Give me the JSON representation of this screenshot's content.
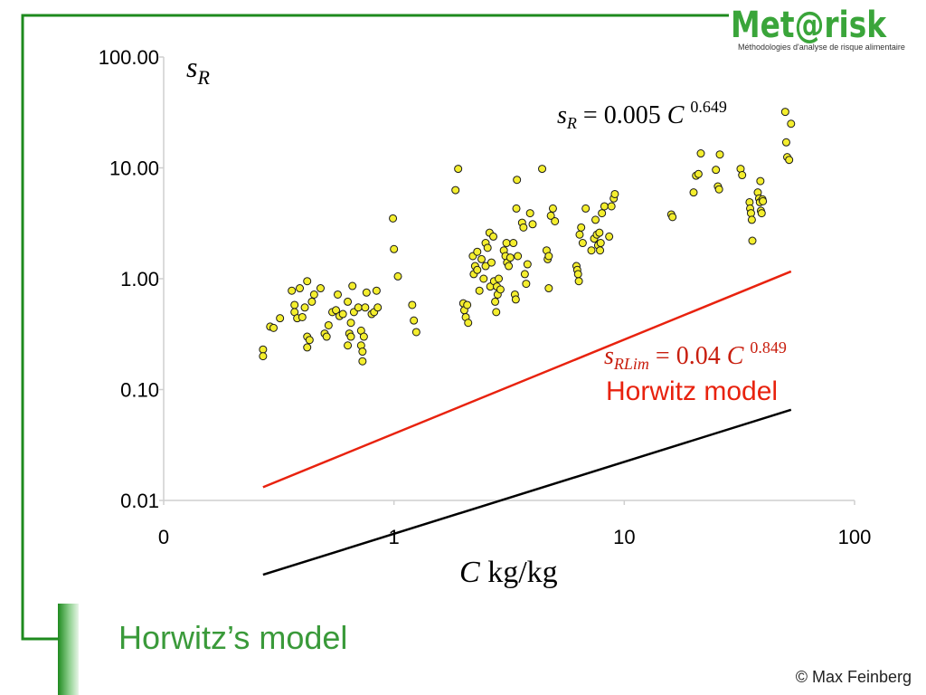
{
  "logo": {
    "name": "Met@risk",
    "tagline": "Méthodologies d'analyse de risque alimentaire"
  },
  "slide": {
    "title": "Horwitz’s model",
    "copyright": "© Max Feinberg"
  },
  "colors": {
    "frame_green": "#1e8a1e",
    "points_fill": "#f4ee2e",
    "fit_line": "#000000",
    "horwitz_line": "#e8220e"
  },
  "annotations": {
    "fit_equation": {
      "lhs": "s",
      "lhs_sub": "R",
      "rhs": " = 0.005 ",
      "var": "C",
      "exp": "0.649"
    },
    "horwitz_equation": {
      "lhs": "s",
      "lhs_sub": "RLim",
      "rhs": " = 0.04 ",
      "var": "C",
      "exp": "0.849"
    },
    "horwitz_label": "Horwitz model"
  },
  "chart_data": {
    "type": "scatter",
    "title": "",
    "xlabel": {
      "var": "C",
      "unit": " kg/kg"
    },
    "ylabel": {
      "var": "s",
      "sub": "R"
    },
    "x_scale": "log",
    "y_scale": "log",
    "xlim": [
      0.1,
      100
    ],
    "ylim": [
      0.01,
      100
    ],
    "x_ticks": [
      {
        "value": 0.1,
        "label": "0"
      },
      {
        "value": 1,
        "label": "1"
      },
      {
        "value": 10,
        "label": "10"
      },
      {
        "value": 100,
        "label": "100"
      }
    ],
    "y_ticks": [
      {
        "value": 0.01,
        "label": "0.01"
      },
      {
        "value": 0.1,
        "label": "0.10"
      },
      {
        "value": 1,
        "label": "1.00"
      },
      {
        "value": 10,
        "label": "10.00"
      },
      {
        "value": 100,
        "label": "100.00"
      }
    ],
    "grid": false,
    "series": [
      {
        "type": "scatter",
        "points": [
          [
            0.27,
            0.23
          ],
          [
            0.27,
            0.2
          ],
          [
            0.29,
            0.37
          ],
          [
            0.3,
            0.36
          ],
          [
            0.32,
            0.44
          ],
          [
            0.36,
            0.78
          ],
          [
            0.37,
            0.58
          ],
          [
            0.37,
            0.5
          ],
          [
            0.38,
            0.44
          ],
          [
            0.39,
            0.82
          ],
          [
            0.4,
            0.45
          ],
          [
            0.41,
            0.55
          ],
          [
            0.42,
            0.95
          ],
          [
            0.42,
            0.24
          ],
          [
            0.42,
            0.3
          ],
          [
            0.43,
            0.28
          ],
          [
            0.44,
            0.62
          ],
          [
            0.45,
            0.72
          ],
          [
            0.48,
            0.82
          ],
          [
            0.5,
            0.32
          ],
          [
            0.51,
            0.3
          ],
          [
            0.52,
            0.38
          ],
          [
            0.54,
            0.5
          ],
          [
            0.56,
            0.52
          ],
          [
            0.57,
            0.72
          ],
          [
            0.58,
            0.46
          ],
          [
            0.6,
            0.48
          ],
          [
            0.63,
            0.62
          ],
          [
            0.63,
            0.25
          ],
          [
            0.64,
            0.32
          ],
          [
            0.65,
            0.3
          ],
          [
            0.65,
            0.4
          ],
          [
            0.66,
            0.86
          ],
          [
            0.67,
            0.5
          ],
          [
            0.7,
            0.55
          ],
          [
            0.72,
            0.25
          ],
          [
            0.72,
            0.34
          ],
          [
            0.73,
            0.22
          ],
          [
            0.73,
            0.18
          ],
          [
            0.74,
            0.3
          ],
          [
            0.75,
            0.55
          ],
          [
            0.76,
            0.75
          ],
          [
            0.8,
            0.48
          ],
          [
            0.82,
            0.5
          ],
          [
            0.84,
            0.78
          ],
          [
            0.85,
            0.55
          ],
          [
            0.99,
            3.5
          ],
          [
            1.0,
            1.85
          ],
          [
            1.04,
            1.05
          ],
          [
            1.2,
            0.58
          ],
          [
            1.22,
            0.42
          ],
          [
            1.25,
            0.33
          ],
          [
            1.85,
            6.3
          ],
          [
            1.9,
            9.8
          ],
          [
            2.0,
            0.6
          ],
          [
            2.02,
            0.52
          ],
          [
            2.05,
            0.45
          ],
          [
            2.08,
            0.58
          ],
          [
            2.1,
            0.4
          ],
          [
            2.2,
            1.6
          ],
          [
            2.22,
            1.1
          ],
          [
            2.25,
            1.3
          ],
          [
            2.3,
            1.2
          ],
          [
            2.3,
            1.75
          ],
          [
            2.35,
            0.78
          ],
          [
            2.4,
            1.5
          ],
          [
            2.45,
            1.0
          ],
          [
            2.5,
            1.3
          ],
          [
            2.5,
            2.1
          ],
          [
            2.55,
            1.9
          ],
          [
            2.6,
            2.6
          ],
          [
            2.62,
            0.85
          ],
          [
            2.65,
            1.4
          ],
          [
            2.7,
            2.4
          ],
          [
            2.72,
            0.95
          ],
          [
            2.75,
            0.62
          ],
          [
            2.78,
            0.5
          ],
          [
            2.8,
            0.85
          ],
          [
            2.82,
            0.72
          ],
          [
            2.85,
            1.0
          ],
          [
            2.9,
            0.8
          ],
          [
            3.0,
            1.8
          ],
          [
            3.05,
            1.6
          ],
          [
            3.08,
            2.1
          ],
          [
            3.1,
            1.4
          ],
          [
            3.15,
            1.3
          ],
          [
            3.2,
            1.55
          ],
          [
            3.3,
            2.1
          ],
          [
            3.35,
            0.72
          ],
          [
            3.38,
            0.65
          ],
          [
            3.4,
            4.3
          ],
          [
            3.42,
            7.8
          ],
          [
            3.45,
            1.6
          ],
          [
            3.6,
            3.2
          ],
          [
            3.65,
            2.9
          ],
          [
            3.7,
            1.1
          ],
          [
            3.75,
            0.9
          ],
          [
            3.8,
            1.35
          ],
          [
            3.9,
            3.9
          ],
          [
            4.0,
            3.1
          ],
          [
            4.4,
            9.8
          ],
          [
            4.6,
            1.8
          ],
          [
            4.65,
            1.5
          ],
          [
            4.7,
            1.6
          ],
          [
            4.7,
            0.82
          ],
          [
            4.8,
            3.7
          ],
          [
            4.9,
            4.3
          ],
          [
            5.0,
            3.3
          ],
          [
            6.2,
            1.3
          ],
          [
            6.25,
            1.2
          ],
          [
            6.3,
            1.1
          ],
          [
            6.35,
            0.95
          ],
          [
            6.4,
            2.5
          ],
          [
            6.5,
            2.9
          ],
          [
            6.6,
            2.1
          ],
          [
            6.8,
            4.3
          ],
          [
            7.2,
            1.8
          ],
          [
            7.4,
            2.3
          ],
          [
            7.5,
            3.4
          ],
          [
            7.6,
            2.5
          ],
          [
            7.7,
            2.0
          ],
          [
            7.8,
            2.6
          ],
          [
            7.85,
            1.8
          ],
          [
            7.9,
            2.1
          ],
          [
            8.0,
            3.9
          ],
          [
            8.2,
            4.5
          ],
          [
            8.6,
            2.4
          ],
          [
            8.8,
            4.5
          ],
          [
            9.0,
            5.3
          ],
          [
            9.1,
            5.8
          ],
          [
            16.0,
            3.8
          ],
          [
            16.2,
            3.6
          ],
          [
            20.0,
            6.0
          ],
          [
            20.5,
            8.5
          ],
          [
            21.0,
            8.8
          ],
          [
            21.5,
            13.5
          ],
          [
            25.0,
            9.6
          ],
          [
            25.5,
            6.8
          ],
          [
            25.8,
            6.4
          ],
          [
            26.0,
            13.2
          ],
          [
            32.0,
            9.8
          ],
          [
            32.5,
            8.6
          ],
          [
            35.0,
            4.9
          ],
          [
            35.2,
            4.3
          ],
          [
            35.5,
            3.9
          ],
          [
            35.8,
            3.4
          ],
          [
            36.0,
            2.2
          ],
          [
            38.0,
            6.0
          ],
          [
            38.5,
            5.3
          ],
          [
            38.8,
            4.9
          ],
          [
            39.0,
            7.6
          ],
          [
            39.2,
            4.1
          ],
          [
            39.5,
            3.9
          ],
          [
            39.8,
            5.2
          ],
          [
            40.0,
            5.0
          ],
          [
            50.0,
            32.0
          ],
          [
            50.5,
            17.0
          ],
          [
            51.0,
            12.5
          ],
          [
            52.0,
            11.8
          ],
          [
            53.0,
            25.0
          ]
        ]
      },
      {
        "type": "line",
        "name": "fit",
        "coef": 0.005,
        "exp": 0.649,
        "x_range": [
          0.27,
          53
        ]
      },
      {
        "type": "line",
        "name": "Horwitz model",
        "coef": 0.04,
        "exp": 0.849,
        "x_range": [
          0.27,
          53
        ]
      }
    ]
  }
}
